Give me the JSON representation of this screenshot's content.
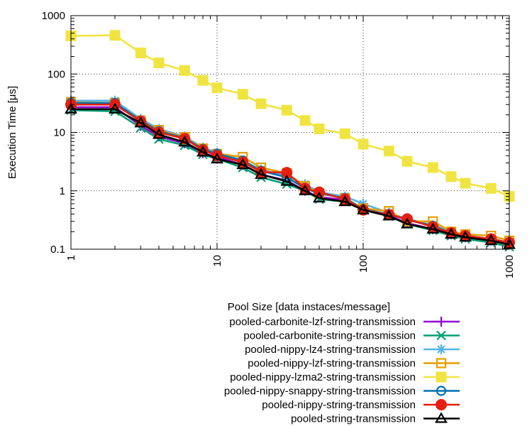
{
  "chart_data": {
    "type": "line",
    "title": "",
    "xlabel": "",
    "ylabel": "Execution Time [μs]",
    "xscale": "log",
    "yscale": "log",
    "xlim": [
      1,
      1000
    ],
    "ylim": [
      0.1,
      1000
    ],
    "grid": true,
    "x_ticks": [
      1,
      10,
      100,
      1000
    ],
    "x_tick_labels": [
      "1",
      "10",
      "100",
      "1000"
    ],
    "y_ticks": [
      0.1,
      1,
      10,
      100,
      1000
    ],
    "y_tick_labels": [
      "0.1",
      "1",
      "10",
      "100",
      "1000"
    ],
    "legend_title": "Pool Size [data instaces/message]",
    "legend_position": "bottom-right, below plot",
    "x": [
      1,
      2,
      3,
      4,
      6,
      8,
      10,
      15,
      20,
      30,
      40,
      50,
      75,
      100,
      150,
      200,
      300,
      400,
      500,
      750,
      1000
    ],
    "series": [
      {
        "name": "pooled-carbonite-lzf-string-transmission",
        "color": "#9400d3",
        "marker": "plus",
        "values": [
          27,
          27,
          13,
          8.5,
          6.5,
          4.4,
          3.8,
          2.8,
          1.9,
          1.5,
          1.0,
          0.78,
          0.7,
          0.5,
          0.38,
          0.28,
          0.22,
          0.18,
          0.16,
          0.14,
          0.12
        ]
      },
      {
        "name": "pooled-carbonite-string-transmission",
        "color": "#009e73",
        "marker": "cross",
        "values": [
          24,
          23,
          12,
          7.7,
          6.0,
          4.2,
          3.5,
          2.5,
          1.7,
          1.3,
          1.0,
          0.72,
          0.65,
          0.48,
          0.37,
          0.27,
          0.21,
          0.17,
          0.15,
          0.13,
          0.11
        ]
      },
      {
        "name": "pooled-nippy-lz4-string-transmission",
        "color": "#56b4e9",
        "marker": "star",
        "values": [
          35,
          35,
          17,
          11.5,
          8.5,
          5.5,
          4.5,
          3.3,
          2.3,
          1.8,
          1.3,
          0.95,
          0.8,
          0.6,
          0.42,
          0.33,
          0.26,
          0.2,
          0.17,
          0.15,
          0.13
        ]
      },
      {
        "name": "pooled-nippy-lzf-string-transmission",
        "color": "#e69f00",
        "marker": "square-open",
        "values": [
          33,
          32,
          16,
          11,
          8.3,
          5.3,
          4.3,
          3.8,
          2.5,
          2.0,
          1.2,
          0.9,
          0.75,
          0.5,
          0.45,
          0.3,
          0.3,
          0.2,
          0.18,
          0.17,
          0.14
        ]
      },
      {
        "name": "pooled-nippy-lzma2-string-transmission",
        "color": "#f0e442",
        "marker": "square-filled",
        "values": [
          450,
          460,
          230,
          155,
          115,
          78,
          58,
          45,
          31,
          24,
          16,
          11.5,
          9.5,
          6.3,
          4.8,
          3.2,
          2.5,
          1.75,
          1.35,
          1.1,
          0.8
        ]
      },
      {
        "name": "pooled-nippy-snappy-string-transmission",
        "color": "#0072b2",
        "marker": "circle-open",
        "values": [
          32,
          32,
          16,
          10.5,
          8.0,
          5.2,
          4.3,
          3.3,
          2.2,
          1.7,
          1.1,
          0.9,
          0.75,
          0.48,
          0.4,
          0.32,
          0.25,
          0.19,
          0.17,
          0.15,
          0.13
        ]
      },
      {
        "name": "pooled-nippy-string-transmission",
        "color": "#e51e10",
        "marker": "circle-filled",
        "values": [
          30,
          30,
          15.5,
          10,
          7.8,
          5.0,
          4.0,
          3.1,
          2.1,
          2.05,
          1.1,
          0.95,
          0.72,
          0.47,
          0.39,
          0.33,
          0.24,
          0.19,
          0.17,
          0.15,
          0.13
        ]
      },
      {
        "name": "pooled-string-transmission",
        "color": "#000000",
        "marker": "triangle-open",
        "values": [
          25,
          25,
          14.5,
          9.2,
          6.8,
          4.6,
          3.5,
          2.8,
          1.9,
          1.45,
          1.0,
          0.75,
          0.65,
          0.47,
          0.37,
          0.27,
          0.22,
          0.18,
          0.16,
          0.14,
          0.12
        ]
      }
    ]
  }
}
